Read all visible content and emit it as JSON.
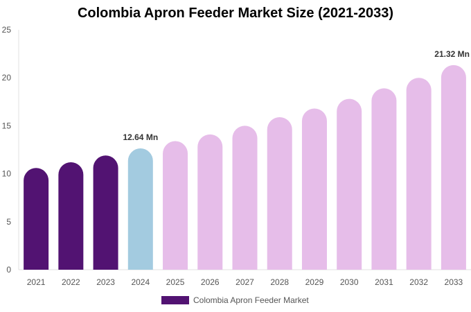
{
  "chart_data": {
    "type": "bar",
    "title": "Colombia Apron Feeder Market Size (2021-2033)",
    "xlabel": "",
    "ylabel": "",
    "ylim": [
      0,
      25
    ],
    "yticks": [
      0,
      5,
      10,
      15,
      20,
      25
    ],
    "grid": false,
    "legend_position": "bottom",
    "categories": [
      "2021",
      "2022",
      "2023",
      "2024",
      "2025",
      "2026",
      "2027",
      "2028",
      "2029",
      "2030",
      "2031",
      "2032",
      "2033"
    ],
    "series": [
      {
        "name": "Colombia Apron Feeder Market",
        "values": [
          10.6,
          11.2,
          11.9,
          12.64,
          13.4,
          14.1,
          15.0,
          15.9,
          16.8,
          17.8,
          18.9,
          20.0,
          21.32
        ],
        "colors": [
          "#521372",
          "#521372",
          "#521372",
          "#a3cbe0",
          "#e6bde9",
          "#e6bde9",
          "#e6bde9",
          "#e6bde9",
          "#e6bde9",
          "#e6bde9",
          "#e6bde9",
          "#e6bde9",
          "#e6bde9"
        ]
      }
    ],
    "data_labels": [
      {
        "category": "2024",
        "text": "12.64 Mn"
      },
      {
        "category": "2033",
        "text": "21.32 Mn"
      }
    ],
    "legend_color": "#521372"
  }
}
